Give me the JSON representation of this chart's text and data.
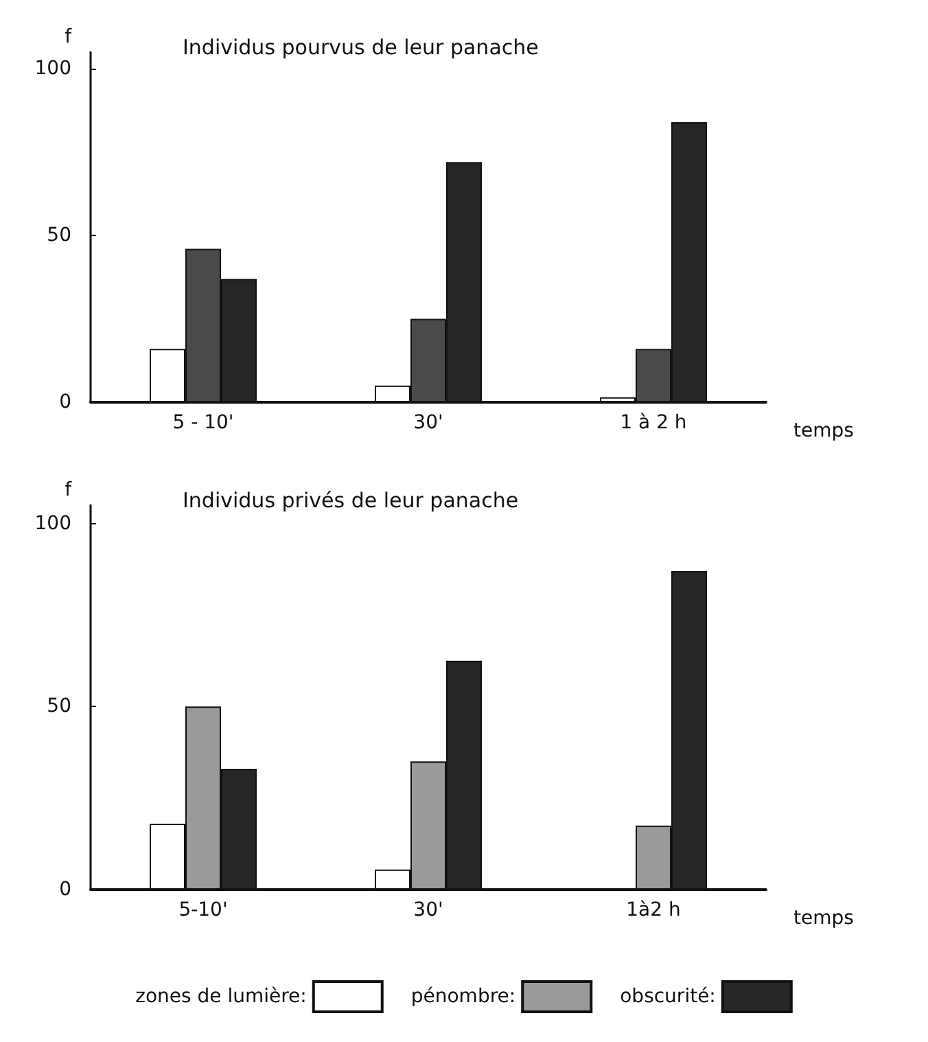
{
  "chart_data": [
    {
      "type": "bar",
      "title": "Individus pourvus de leur panache",
      "xlabel": "temps",
      "ylabel": "f",
      "categories": [
        "5 - 10'",
        "30'",
        "1 à 2 h"
      ],
      "series": [
        {
          "color": "#ffffff",
          "values": [
            16,
            5,
            1.5
          ]
        },
        {
          "color": "#4a4a4a",
          "values": [
            46,
            25,
            16
          ]
        },
        {
          "color": "#262626",
          "values": [
            37,
            72,
            84
          ]
        }
      ],
      "ylim": [
        0,
        105
      ],
      "yticks": [
        0,
        50,
        100
      ],
      "grid": false,
      "legend": false
    },
    {
      "type": "bar",
      "title": "Individus privés de leur panache",
      "xlabel": "temps",
      "ylabel": "f",
      "categories": [
        "5-10'",
        "30'",
        "1à2 h"
      ],
      "series": [
        {
          "name": "zones de lumière:",
          "color": "#ffffff",
          "values": [
            18,
            5.5,
            null
          ]
        },
        {
          "name": "pénombre:",
          "color": "#9a9a9a",
          "values": [
            50,
            35,
            17.5
          ]
        },
        {
          "name": "obscurité:",
          "color": "#262626",
          "values": [
            33,
            62.5,
            87
          ]
        }
      ],
      "ylim": [
        0,
        105
      ],
      "yticks": [
        0,
        50,
        100
      ],
      "grid": false,
      "legend": "bottom"
    }
  ]
}
